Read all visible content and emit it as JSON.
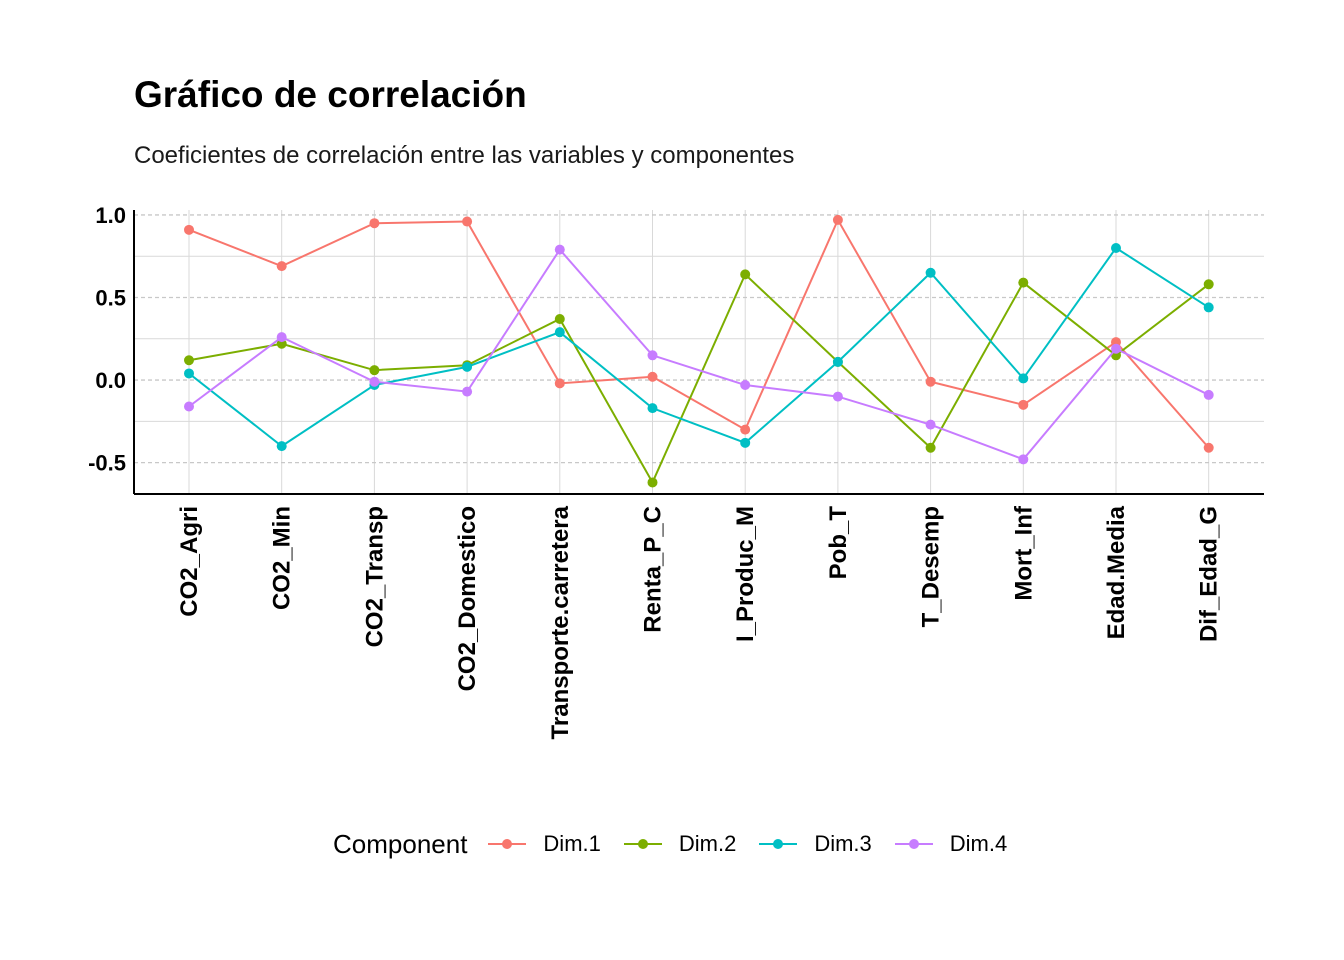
{
  "chart_data": {
    "type": "line",
    "title": "Gráfico de correlación",
    "subtitle": "Coeficientes de correlación entre las variables y componentes",
    "xlabel": "",
    "ylabel": "",
    "categories": [
      "CO2_Agri",
      "CO2_Min",
      "CO2_Transp",
      "CO2_Domestico",
      "Transporte.carretera",
      "Renta_P_C",
      "I_Produc_M",
      "Pob_T",
      "T_Desemp",
      "Mort_Inf",
      "Edad.Media",
      "Dif_Edad_G"
    ],
    "ylim": [
      -0.69,
      1.03
    ],
    "yticks": [
      -0.5,
      0.0,
      0.5,
      1.0
    ],
    "ytick_labels": [
      "-0.5",
      "0.0",
      "0.5",
      "1.0"
    ],
    "grid": true,
    "legend_title": "Component",
    "legend_position": "bottom",
    "series": [
      {
        "name": "Dim.1",
        "color": "#F8766D",
        "values": [
          0.91,
          0.69,
          0.95,
          0.96,
          -0.02,
          0.02,
          -0.3,
          0.97,
          -0.01,
          -0.15,
          0.23,
          -0.41
        ]
      },
      {
        "name": "Dim.2",
        "color": "#7CAE00",
        "values": [
          0.12,
          0.22,
          0.06,
          0.09,
          0.37,
          -0.62,
          0.64,
          0.11,
          -0.41,
          0.59,
          0.15,
          0.58
        ]
      },
      {
        "name": "Dim.3",
        "color": "#00BFC4",
        "values": [
          0.04,
          -0.4,
          -0.03,
          0.08,
          0.29,
          -0.17,
          -0.38,
          0.11,
          0.65,
          0.01,
          0.8,
          0.44
        ]
      },
      {
        "name": "Dim.4",
        "color": "#C77CFF",
        "values": [
          -0.16,
          0.26,
          -0.01,
          -0.07,
          0.79,
          0.15,
          -0.03,
          -0.1,
          -0.27,
          -0.48,
          0.19,
          -0.09
        ]
      }
    ]
  }
}
